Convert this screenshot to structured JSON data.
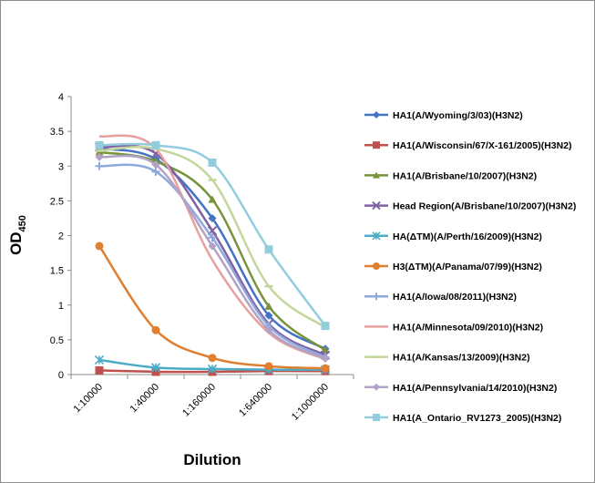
{
  "chart_data": {
    "type": "line",
    "xlabel": "Dilution",
    "ylabel": "OD",
    "ylabel_subscript": "450",
    "categories": [
      "1:10000",
      "1:40000",
      "1:160000",
      "1:640000",
      "1:1000000"
    ],
    "ylim": [
      0,
      4
    ],
    "yticks": [
      "0",
      "0.5",
      "1",
      "1.5",
      "2",
      "2.5",
      "3",
      "3.5",
      "4"
    ],
    "grid": false,
    "legend_position": "right",
    "series": [
      {
        "name": "HA1(A/Wyoming/3/03)(H3N2)",
        "color": "#4472C4",
        "marker": "diamond",
        "values": [
          3.25,
          3.1,
          2.25,
          0.85,
          0.37
        ]
      },
      {
        "name": "HA1(A/Wisconsin/67/X-161/2005)(H3N2)",
        "color": "#C0504D",
        "marker": "square",
        "values": [
          0.06,
          0.04,
          0.04,
          0.05,
          0.05
        ]
      },
      {
        "name": "HA1(A/Brisbane/10/2007)(H3N2)",
        "color": "#77933C",
        "marker": "triangle",
        "values": [
          3.2,
          3.07,
          2.52,
          0.98,
          0.35
        ]
      },
      {
        "name": "Head Region(A/Brisbane/10/2007)(H3N2)",
        "color": "#7F62A4",
        "marker": "x",
        "values": [
          3.27,
          3.18,
          2.07,
          0.73,
          0.28
        ]
      },
      {
        "name": "HA(ΔTM)(A/Perth/16/2009)(H3N2)",
        "color": "#4BACC6",
        "marker": "star",
        "values": [
          0.21,
          0.1,
          0.08,
          0.07,
          0.07
        ]
      },
      {
        "name": "H3(ΔTM)(A/Panama/07/99)(H3N2)",
        "color": "#E07F2F",
        "marker": "circle",
        "values": [
          1.85,
          0.64,
          0.24,
          0.12,
          0.09
        ]
      },
      {
        "name": "HA1(A/Iowa/08/2011)(H3N2)",
        "color": "#8FA9DB",
        "marker": "plus",
        "values": [
          3.0,
          2.92,
          1.97,
          0.7,
          0.25
        ]
      },
      {
        "name": "HA1(A/Minnesota/09/2010)(H3N2)",
        "color": "#E6A19E",
        "marker": "none",
        "values": [
          3.43,
          3.25,
          1.65,
          0.6,
          0.22
        ]
      },
      {
        "name": "HA1(A/Kansas/13/2009)(H3N2)",
        "color": "#C4D79B",
        "marker": "dash",
        "values": [
          3.22,
          3.25,
          2.8,
          1.27,
          0.68
        ]
      },
      {
        "name": "HA1(A/Pennsylvania/14/2010)(H3N2)",
        "color": "#B3A2C7",
        "marker": "diamond",
        "values": [
          3.13,
          3.02,
          1.85,
          0.64,
          0.23
        ]
      },
      {
        "name": "HA1(A_Ontario_RV1273_2005)(H3N2)",
        "color": "#93CDDD",
        "marker": "square",
        "values": [
          3.3,
          3.3,
          3.05,
          1.8,
          0.7
        ]
      }
    ]
  }
}
